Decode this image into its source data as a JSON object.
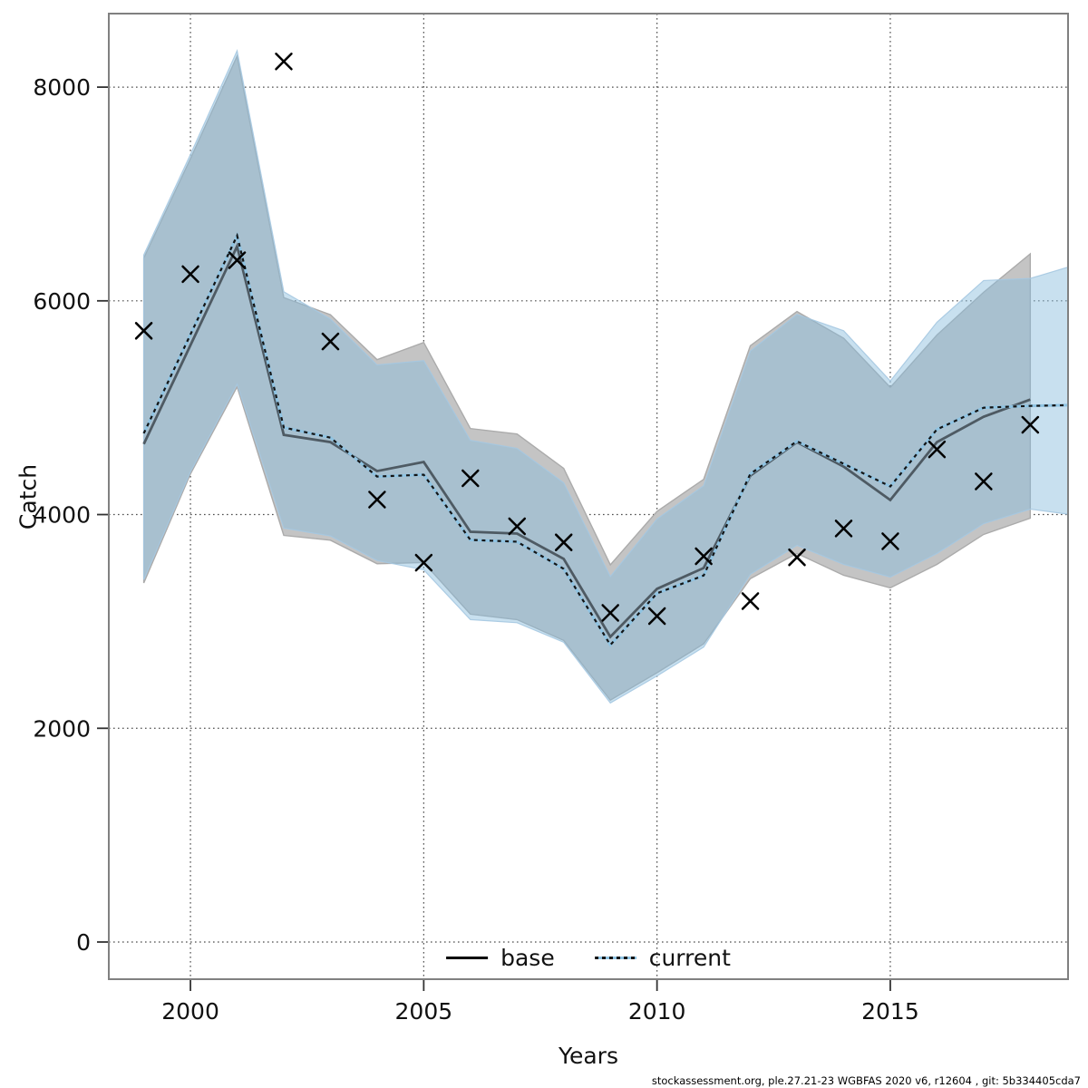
{
  "footer": {
    "text": "stockassessment.org, ple.27.21-23 WGBFAS 2020 v6, r12604 , git: 5b334405cda7"
  },
  "legend": {
    "items": [
      {
        "label": "base",
        "style": "solid-black-line"
      },
      {
        "label": "current",
        "style": "dotted-blue-line"
      }
    ]
  },
  "chart_data": {
    "type": "line",
    "title": "",
    "xlabel": "Years",
    "ylabel": "Catch",
    "x_ticks": [
      2000,
      2005,
      2010,
      2015
    ],
    "y_ticks": [
      0,
      2000,
      4000,
      6000,
      8000
    ],
    "xlim": [
      1998.25,
      2018.81
    ],
    "ylim": [
      -348,
      8688
    ],
    "grid": true,
    "legend_position": "bottom-center",
    "series": [
      {
        "name": "observed",
        "style": "x-markers",
        "x": [
          1999,
          2000,
          2001,
          2002,
          2003,
          2004,
          2005,
          2006,
          2007,
          2008,
          2009,
          2010,
          2011,
          2012,
          2013,
          2014,
          2015,
          2016,
          2017,
          2018
        ],
        "y": [
          5720,
          6250,
          6380,
          8240,
          5620,
          4140,
          3550,
          4340,
          3890,
          3740,
          3080,
          3050,
          3610,
          3190,
          3600,
          3870,
          3750,
          4610,
          4310,
          4840
        ]
      },
      {
        "name": "base",
        "style": "solid-line-with-gray-band",
        "x": [
          1999,
          2000,
          2001,
          2002,
          2003,
          2004,
          2005,
          2006,
          2007,
          2008,
          2009,
          2010,
          2011,
          2012,
          2013,
          2014,
          2015,
          2016,
          2017,
          2018
        ],
        "y": [
          4660,
          5585,
          6510,
          4746,
          4678,
          4407,
          4492,
          3839,
          3822,
          3585,
          2856,
          3305,
          3500,
          4364,
          4678,
          4449,
          4136,
          4678,
          4915,
          5076
        ],
        "lower": [
          3360,
          4380,
          5195,
          3805,
          3760,
          3540,
          3551,
          3068,
          3017,
          2822,
          2263,
          2520,
          2790,
          3400,
          3636,
          3432,
          3314,
          3534,
          3814,
          3966
        ],
        "upper": [
          6400,
          7330,
          8290,
          6030,
          5870,
          5450,
          5610,
          4805,
          4754,
          4432,
          3530,
          4030,
          4330,
          5580,
          5900,
          5650,
          5190,
          5680,
          6080,
          6440
        ]
      },
      {
        "name": "current",
        "style": "dotted-line-with-blue-band",
        "x": [
          1999,
          2000,
          2001,
          2002,
          2003,
          2004,
          2005,
          2006,
          2007,
          2008,
          2009,
          2010,
          2011,
          2012,
          2013,
          2014,
          2015,
          2016,
          2017,
          2018,
          2019
        ],
        "y": [
          4760,
          5685,
          6610,
          4815,
          4720,
          4356,
          4373,
          3763,
          3746,
          3492,
          2780,
          3263,
          3430,
          4381,
          4686,
          4475,
          4263,
          4797,
          5000,
          5017,
          5025
        ],
        "lower": [
          3390,
          4400,
          5220,
          3873,
          3800,
          3570,
          3483,
          3017,
          2988,
          2805,
          2237,
          2490,
          2760,
          3441,
          3712,
          3534,
          3415,
          3636,
          3915,
          4051,
          3992
        ],
        "upper": [
          6430,
          7370,
          8340,
          6085,
          5830,
          5400,
          5440,
          4695,
          4619,
          4297,
          3420,
          3958,
          4270,
          5530,
          5873,
          5720,
          5250,
          5800,
          6190,
          6210,
          6340
        ]
      }
    ],
    "colors": {
      "base_band": "#c4c4c4",
      "base_band_edge": "#ababab",
      "base_line": "#4e5a63",
      "current_band": "rgba(135,187,220,0.46)",
      "current_band_edge": "rgba(165,200,225,0.9)",
      "current_line_under": "#8fc3e2",
      "current_line_dash": "#141414",
      "marker": "#000000",
      "grid": "#4d4d4d",
      "frame": "#808080",
      "tick": "#333333"
    }
  }
}
